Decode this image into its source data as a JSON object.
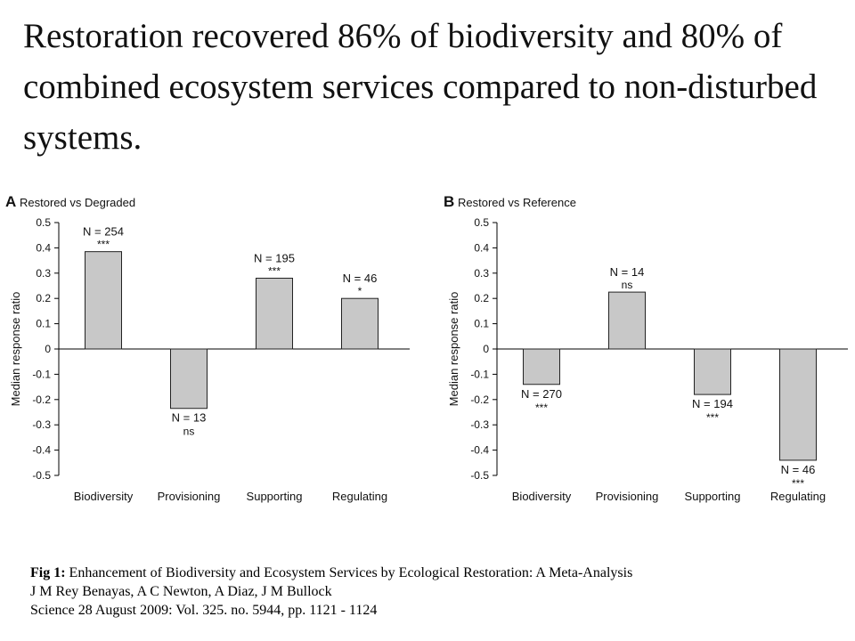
{
  "headline": "Restoration recovered 86% of biodiversity and 80% of combined ecosystem services compared to non-disturbed systems.",
  "colors": {
    "bar_fill": "#c8c8c8",
    "bar_stroke": "#222222",
    "text": "#111111"
  },
  "chart_data": [
    {
      "type": "bar",
      "panel_letter": "A",
      "title": "Restored vs Degraded",
      "ylabel": "Median response ratio",
      "xlabel": "",
      "categories": [
        "Biodiversity",
        "Provisioning",
        "Supporting",
        "Regulating"
      ],
      "values": [
        0.385,
        -0.235,
        0.28,
        0.2
      ],
      "n_labels": [
        "N = 254",
        "N = 13",
        "N = 195",
        "N = 46"
      ],
      "significance": [
        "***",
        "ns",
        "***",
        "*"
      ],
      "ylim": [
        -0.5,
        0.5
      ],
      "yticks": [
        "0.5",
        "0.4",
        "0.3",
        "0.2",
        "0.1",
        "0",
        "-0.1",
        "-0.2",
        "-0.3",
        "-0.4",
        "-0.5"
      ],
      "grid": false
    },
    {
      "type": "bar",
      "panel_letter": "B",
      "title": "Restored vs Reference",
      "ylabel": "Median response ratio",
      "xlabel": "",
      "categories": [
        "Biodiversity",
        "Provisioning",
        "Supporting",
        "Regulating"
      ],
      "values": [
        -0.14,
        0.225,
        -0.18,
        -0.44
      ],
      "n_labels": [
        "N = 270",
        "N = 14",
        "N = 194",
        "N = 46"
      ],
      "significance": [
        "***",
        "ns",
        "***",
        "***"
      ],
      "ylim": [
        -0.5,
        0.5
      ],
      "yticks": [
        "0.5",
        "0.4",
        "0.3",
        "0.2",
        "0.1",
        "0",
        "-0.1",
        "-0.2",
        "-0.3",
        "-0.4",
        "-0.5"
      ],
      "grid": false
    }
  ],
  "caption": {
    "fig_label": "Fig 1:",
    "line1": " Enhancement of Biodiversity and Ecosystem Services by Ecological Restoration: A Meta-Analysis",
    "line2": "J M Rey Benayas, A C Newton, A Diaz, J M Bullock",
    "line3": "Science 28 August 2009:  Vol. 325. no. 5944, pp. 1121 - 1124"
  }
}
